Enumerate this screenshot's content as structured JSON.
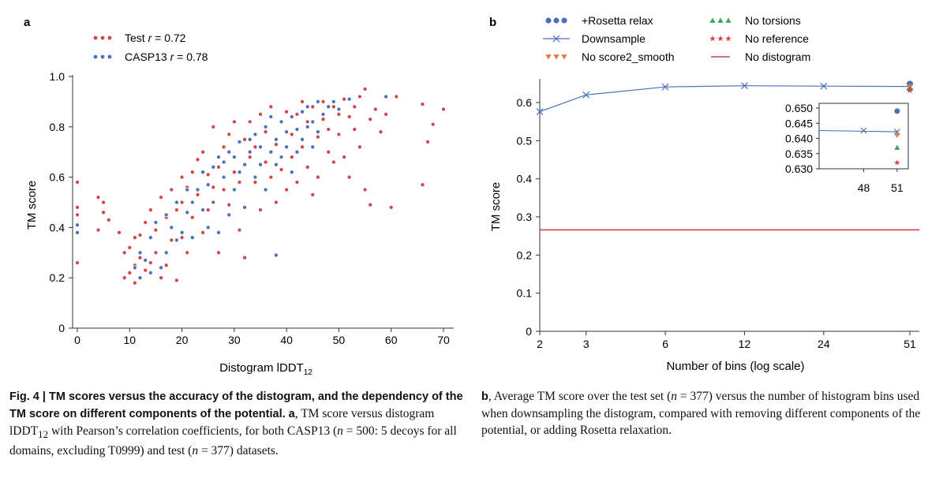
{
  "panel_a": {
    "letter": "a",
    "xlabel": "Distogram lDDT",
    "xlabel_sub": "12",
    "ylabel": "TM score",
    "xticks": [
      "0",
      "10",
      "20",
      "30",
      "40",
      "50",
      "60",
      "70"
    ],
    "yticks": [
      "0",
      "0.2",
      "0.4",
      "0.6",
      "0.8",
      "1.0"
    ],
    "legend": [
      {
        "prefix": "Test ",
        "r": "r",
        "suffix": " = 0.72",
        "color": "#d6444a"
      },
      {
        "prefix": "CASP13 ",
        "r": "r",
        "suffix": " = 0.78",
        "color": "#4a72b8"
      }
    ]
  },
  "panel_b": {
    "letter": "b",
    "xlabel": "Number of bins (log scale)",
    "ylabel": "TM score",
    "xticks": [
      "2",
      "3",
      "6",
      "12",
      "24",
      "51"
    ],
    "yticks": [
      "0",
      "0.1",
      "0.2",
      "0.3",
      "0.4",
      "0.5",
      "0.6"
    ],
    "inset_yticks": [
      "0.630",
      "0.635",
      "0.640",
      "0.645",
      "0.650"
    ],
    "inset_xticks": [
      "48",
      "51"
    ],
    "legend": [
      {
        "label": "+Rosetta relax",
        "marker": "circle",
        "color": "#4a72b8"
      },
      {
        "label": "No torsions",
        "marker": "triangle",
        "color": "#3fa557"
      },
      {
        "label": "Downsample",
        "marker": "x-line",
        "color": "#4a72b8"
      },
      {
        "label": "No reference",
        "marker": "star",
        "color": "#d6444a"
      },
      {
        "label": "No score2_smooth",
        "marker": "triangle-down",
        "color": "#e07b39"
      },
      {
        "label": "No distogram",
        "marker": "line",
        "color": "#d6444a"
      }
    ]
  },
  "chart_data": [
    {
      "type": "scatter",
      "xlabel": "Distogram lDDT12",
      "ylabel": "TM score",
      "xlim": [
        -1,
        72
      ],
      "ylim": [
        0,
        1.0
      ],
      "grid": false,
      "legend_position": "top-left",
      "series": [
        {
          "name": "Test r = 0.72",
          "color": "#d6444a",
          "points": [
            [
              0,
              0.58
            ],
            [
              0,
              0.48
            ],
            [
              0,
              0.45
            ],
            [
              0,
              0.38
            ],
            [
              0,
              0.26
            ],
            [
              4,
              0.52
            ],
            [
              4,
              0.39
            ],
            [
              5,
              0.5
            ],
            [
              5,
              0.46
            ],
            [
              6,
              0.43
            ],
            [
              8,
              0.38
            ],
            [
              9,
              0.3
            ],
            [
              9,
              0.2
            ],
            [
              10,
              0.22
            ],
            [
              10,
              0.32
            ],
            [
              11,
              0.18
            ],
            [
              11,
              0.25
            ],
            [
              11,
              0.36
            ],
            [
              12,
              0.2
            ],
            [
              12,
              0.28
            ],
            [
              12,
              0.37
            ],
            [
              13,
              0.42
            ],
            [
              13,
              0.23
            ],
            [
              14,
              0.26
            ],
            [
              14,
              0.47
            ],
            [
              15,
              0.3
            ],
            [
              15,
              0.39
            ],
            [
              16,
              0.2
            ],
            [
              16,
              0.52
            ],
            [
              17,
              0.25
            ],
            [
              17,
              0.44
            ],
            [
              18,
              0.35
            ],
            [
              18,
              0.55
            ],
            [
              19,
              0.19
            ],
            [
              19,
              0.47
            ],
            [
              20,
              0.5
            ],
            [
              20,
              0.6
            ],
            [
              20,
              0.36
            ],
            [
              21,
              0.56
            ],
            [
              21,
              0.3
            ],
            [
              22,
              0.62
            ],
            [
              22,
              0.44
            ],
            [
              23,
              0.67
            ],
            [
              23,
              0.53
            ],
            [
              24,
              0.38
            ],
            [
              24,
              0.7
            ],
            [
              25,
              0.61
            ],
            [
              25,
              0.47
            ],
            [
              26,
              0.8
            ],
            [
              26,
              0.56
            ],
            [
              27,
              0.64
            ],
            [
              27,
              0.3
            ],
            [
              28,
              0.72
            ],
            [
              28,
              0.55
            ],
            [
              29,
              0.77
            ],
            [
              29,
              0.49
            ],
            [
              30,
              0.62
            ],
            [
              30,
              0.82
            ],
            [
              31,
              0.58
            ],
            [
              31,
              0.39
            ],
            [
              32,
              0.75
            ],
            [
              32,
              0.28
            ],
            [
              33,
              0.68
            ],
            [
              33,
              0.82
            ],
            [
              34,
              0.58
            ],
            [
              34,
              0.72
            ],
            [
              35,
              0.47
            ],
            [
              35,
              0.85
            ],
            [
              36,
              0.66
            ],
            [
              36,
              0.78
            ],
            [
              37,
              0.6
            ],
            [
              37,
              0.88
            ],
            [
              38,
              0.5
            ],
            [
              38,
              0.73
            ],
            [
              39,
              0.82
            ],
            [
              39,
              0.63
            ],
            [
              40,
              0.86
            ],
            [
              40,
              0.55
            ],
            [
              41,
              0.77
            ],
            [
              41,
              0.68
            ],
            [
              42,
              0.85
            ],
            [
              42,
              0.58
            ],
            [
              43,
              0.9
            ],
            [
              43,
              0.72
            ],
            [
              44,
              0.64
            ],
            [
              44,
              0.82
            ],
            [
              45,
              0.88
            ],
            [
              45,
              0.53
            ],
            [
              46,
              0.76
            ],
            [
              46,
              0.6
            ],
            [
              47,
              0.9
            ],
            [
              47,
              0.83
            ],
            [
              48,
              0.7
            ],
            [
              48,
              0.79
            ],
            [
              49,
              0.88
            ],
            [
              49,
              0.66
            ],
            [
              50,
              0.85
            ],
            [
              50,
              0.77
            ],
            [
              51,
              0.91
            ],
            [
              51,
              0.68
            ],
            [
              52,
              0.84
            ],
            [
              52,
              0.6
            ],
            [
              53,
              0.88
            ],
            [
              53,
              0.79
            ],
            [
              54,
              0.92
            ],
            [
              54,
              0.72
            ],
            [
              55,
              0.95
            ],
            [
              55,
              0.55
            ],
            [
              56,
              0.83
            ],
            [
              56,
              0.49
            ],
            [
              57,
              0.87
            ],
            [
              58,
              0.78
            ],
            [
              59,
              0.85
            ],
            [
              60,
              0.48
            ],
            [
              61,
              0.92
            ],
            [
              66,
              0.89
            ],
            [
              66,
              0.57
            ],
            [
              67,
              0.74
            ],
            [
              68,
              0.81
            ],
            [
              70,
              0.87
            ]
          ]
        },
        {
          "name": "CASP13 r = 0.78",
          "color": "#4a72b8",
          "points": [
            [
              0,
              0.41
            ],
            [
              0,
              0.38
            ],
            [
              11,
              0.24
            ],
            [
              12,
              0.2
            ],
            [
              12,
              0.3
            ],
            [
              13,
              0.27
            ],
            [
              14,
              0.36
            ],
            [
              14,
              0.22
            ],
            [
              15,
              0.42
            ],
            [
              16,
              0.24
            ],
            [
              17,
              0.3
            ],
            [
              17,
              0.45
            ],
            [
              18,
              0.4
            ],
            [
              19,
              0.5
            ],
            [
              19,
              0.35
            ],
            [
              20,
              0.38
            ],
            [
              21,
              0.46
            ],
            [
              21,
              0.55
            ],
            [
              22,
              0.5
            ],
            [
              22,
              0.36
            ],
            [
              23,
              0.55
            ],
            [
              24,
              0.62
            ],
            [
              24,
              0.47
            ],
            [
              25,
              0.57
            ],
            [
              25,
              0.4
            ],
            [
              26,
              0.64
            ],
            [
              26,
              0.5
            ],
            [
              27,
              0.68
            ],
            [
              27,
              0.38
            ],
            [
              28,
              0.6
            ],
            [
              28,
              0.66
            ],
            [
              29,
              0.7
            ],
            [
              29,
              0.45
            ],
            [
              30,
              0.68
            ],
            [
              30,
              0.55
            ],
            [
              31,
              0.74
            ],
            [
              31,
              0.62
            ],
            [
              32,
              0.65
            ],
            [
              32,
              0.48
            ],
            [
              33,
              0.75
            ],
            [
              33,
              0.7
            ],
            [
              34,
              0.6
            ],
            [
              34,
              0.77
            ],
            [
              35,
              0.72
            ],
            [
              35,
              0.65
            ],
            [
              36,
              0.8
            ],
            [
              36,
              0.55
            ],
            [
              37,
              0.7
            ],
            [
              37,
              0.84
            ],
            [
              38,
              0.75
            ],
            [
              38,
              0.65
            ],
            [
              39,
              0.68
            ],
            [
              39,
              0.82
            ],
            [
              40,
              0.78
            ],
            [
              40,
              0.72
            ],
            [
              41,
              0.84
            ],
            [
              41,
              0.62
            ],
            [
              42,
              0.79
            ],
            [
              42,
              0.7
            ],
            [
              43,
              0.86
            ],
            [
              43,
              0.75
            ],
            [
              44,
              0.8
            ],
            [
              44,
              0.88
            ],
            [
              45,
              0.82
            ],
            [
              45,
              0.72
            ],
            [
              46,
              0.9
            ],
            [
              46,
              0.78
            ],
            [
              47,
              0.85
            ],
            [
              48,
              0.88
            ],
            [
              49,
              0.9
            ],
            [
              50,
              0.87
            ],
            [
              52,
              0.91
            ],
            [
              38,
              0.29
            ],
            [
              59,
              0.92
            ]
          ]
        }
      ]
    },
    {
      "type": "line",
      "xlabel": "Number of bins (log scale)",
      "ylabel": "TM score",
      "xscale": "log",
      "xlim": [
        2,
        51
      ],
      "ylim": [
        0,
        0.66
      ],
      "grid": false,
      "legend_position": "top",
      "series": [
        {
          "name": "Downsample",
          "color": "#4a72b8",
          "marker": "x",
          "x": [
            2,
            3,
            6,
            12,
            24,
            51
          ],
          "y": [
            0.576,
            0.62,
            0.641,
            0.644,
            0.643,
            0.642
          ]
        },
        {
          "name": "+Rosetta relax",
          "color": "#4a72b8",
          "marker": "circle",
          "x": [
            51
          ],
          "y": [
            0.649
          ]
        },
        {
          "name": "No score2_smooth",
          "color": "#e07b39",
          "marker": "triangle-down",
          "x": [
            51
          ],
          "y": [
            0.641
          ]
        },
        {
          "name": "No torsions",
          "color": "#3fa557",
          "marker": "triangle",
          "x": [
            51
          ],
          "y": [
            0.637
          ]
        },
        {
          "name": "No reference",
          "color": "#d6444a",
          "marker": "star",
          "x": [
            51
          ],
          "y": [
            0.632
          ]
        },
        {
          "name": "No distogram",
          "color": "#d6444a",
          "marker": "hline",
          "y": [
            0.266
          ]
        }
      ],
      "inset": {
        "xlim": [
          44,
          52
        ],
        "ylim": [
          0.63,
          0.65
        ],
        "xticks": [
          48,
          51
        ]
      }
    }
  ]
}
